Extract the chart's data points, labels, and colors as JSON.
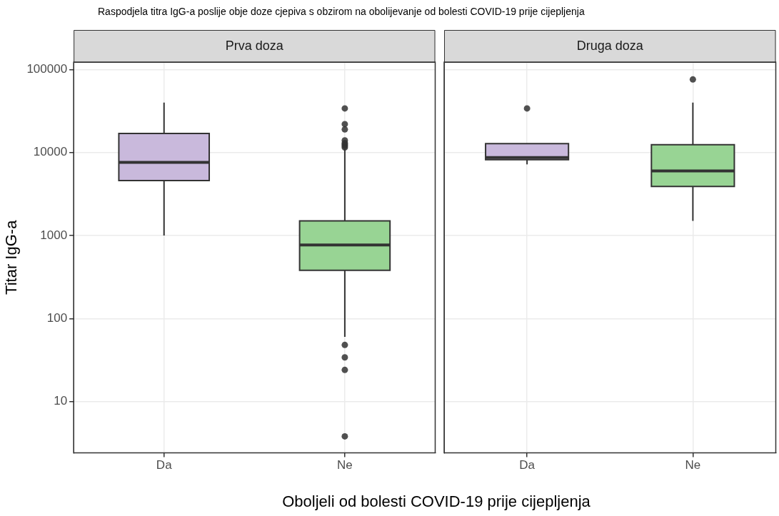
{
  "chart_data": [
    {
      "type": "box",
      "title": "Raspodjela titra IgG-a poslije obje doze cjepiva s obzirom na obolijevanje od bolesti COVID-19 prije cijepljenja",
      "subtitle": "Prva doza",
      "xlabel": "Oboljeli od bolesti COVID-19 prije cijepljenja",
      "ylabel": "Titar IgG-a",
      "categories": [
        "Da",
        "Ne"
      ],
      "colors": [
        "#c9b9dc",
        "#98d494"
      ],
      "boxes": [
        {
          "low": 1000,
          "q1": 4600,
          "median": 7600,
          "q3": 17000,
          "high": 40000
        },
        {
          "low": 60,
          "q1": 380,
          "median": 770,
          "q3": 1500,
          "high": 11000,
          "outliers": [
            34000,
            22000,
            19000,
            14000,
            13000,
            12500,
            12000,
            11500,
            48,
            34,
            24,
            3.8
          ]
        }
      ],
      "log": true,
      "ylim": [
        2.4,
        123000
      ],
      "yticks": [
        10,
        100,
        1000,
        10000,
        100000
      ],
      "grid": true
    },
    {
      "type": "box",
      "subtitle": "Druga doza",
      "categories": [
        "Da",
        "Ne"
      ],
      "colors": [
        "#c9b9dc",
        "#98d494"
      ],
      "boxes": [
        {
          "low": 7200,
          "q1": 8200,
          "median": 8700,
          "q3": 12800,
          "high": 12800,
          "outliers": [
            34000
          ]
        },
        {
          "low": 1500,
          "q1": 3900,
          "median": 6000,
          "q3": 12400,
          "high": 40000,
          "outliers": [
            76000
          ]
        }
      ],
      "log": true,
      "ylim": [
        2.4,
        123000
      ],
      "yticks": [
        10,
        100,
        1000,
        10000,
        100000
      ],
      "grid": true,
      "tick_labels": "x"
    }
  ]
}
